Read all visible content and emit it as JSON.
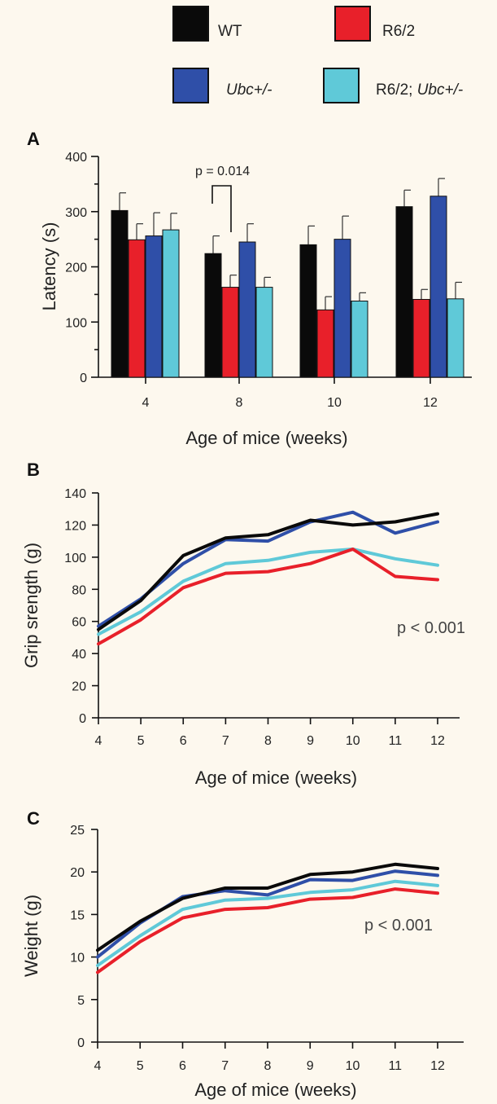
{
  "legend": [
    {
      "label": "WT",
      "italic_part": "",
      "color": "#0a0a0a"
    },
    {
      "label": "R6/2",
      "italic_part": "",
      "color": "#e8202a"
    },
    {
      "label": "",
      "italic_part": "Ubc+/-",
      "color": "#2f4fa8"
    },
    {
      "label": "R6/2; ",
      "italic_part": "Ubc+/-",
      "color": "#5fc9d8"
    }
  ],
  "chart_data": [
    {
      "panel": "A",
      "type": "bar",
      "categories": [
        "4",
        "8",
        "10",
        "12"
      ],
      "series": [
        {
          "name": "WT",
          "color": "#0a0a0a",
          "values": [
            302,
            224,
            240,
            309
          ],
          "errors": [
            32,
            32,
            34,
            30
          ]
        },
        {
          "name": "R6/2",
          "color": "#e8202a",
          "values": [
            249,
            163,
            122,
            141
          ],
          "errors": [
            29,
            22,
            24,
            18
          ]
        },
        {
          "name": "Ubc+/-",
          "color": "#2f4fa8",
          "values": [
            256,
            245,
            250,
            328
          ],
          "errors": [
            42,
            33,
            42,
            32
          ]
        },
        {
          "name": "R6/2; Ubc+/-",
          "color": "#5fc9d8",
          "values": [
            267,
            163,
            138,
            142
          ],
          "errors": [
            30,
            18,
            15,
            30
          ]
        }
      ],
      "xlabel": "Age of mice (weeks)",
      "ylabel": "Latency (s)",
      "ylim": [
        0,
        400
      ],
      "yticks": [
        0,
        100,
        200,
        300,
        400
      ],
      "annotation": "p = 0.014"
    },
    {
      "panel": "B",
      "type": "line",
      "x": [
        4,
        5,
        6,
        7,
        8,
        9,
        10,
        11,
        12
      ],
      "series": [
        {
          "name": "WT",
          "color": "#0a0a0a",
          "values": [
            55,
            73,
            101,
            112,
            114,
            123,
            120,
            122,
            127
          ]
        },
        {
          "name": "R6/2",
          "color": "#e8202a",
          "values": [
            46,
            61,
            81,
            90,
            91,
            96,
            105,
            88,
            86
          ]
        },
        {
          "name": "Ubc+/-",
          "color": "#2f4fa8",
          "values": [
            57,
            74,
            96,
            111,
            110,
            122,
            128,
            115,
            122
          ]
        },
        {
          "name": "R6/2; Ubc+/-",
          "color": "#5fc9d8",
          "values": [
            52,
            66,
            85,
            96,
            98,
            103,
            105,
            99,
            95
          ]
        }
      ],
      "xlabel": "Age of mice (weeks)",
      "ylabel": "Grip srength (g)",
      "xlim": [
        4,
        12
      ],
      "ylim": [
        0,
        140
      ],
      "xticks": [
        4,
        5,
        6,
        7,
        8,
        9,
        10,
        11,
        12
      ],
      "yticks": [
        0,
        20,
        40,
        60,
        80,
        100,
        120,
        140
      ],
      "annotation": "p < 0.001"
    },
    {
      "panel": "C",
      "type": "line",
      "x": [
        4,
        5,
        6,
        7,
        8,
        9,
        10,
        11,
        12
      ],
      "series": [
        {
          "name": "WT",
          "color": "#0a0a0a",
          "values": [
            10.8,
            14.2,
            16.9,
            18.1,
            18.1,
            19.7,
            20.0,
            20.9,
            20.4
          ]
        },
        {
          "name": "R6/2",
          "color": "#e8202a",
          "values": [
            8.2,
            11.8,
            14.6,
            15.6,
            15.8,
            16.8,
            17.0,
            18.0,
            17.5
          ]
        },
        {
          "name": "Ubc+/-",
          "color": "#2f4fa8",
          "values": [
            10.0,
            14.0,
            17.1,
            17.8,
            17.3,
            19.1,
            19.0,
            20.1,
            19.6
          ]
        },
        {
          "name": "R6/2; Ubc+/-",
          "color": "#5fc9d8",
          "values": [
            9.0,
            12.5,
            15.6,
            16.7,
            16.9,
            17.6,
            17.9,
            18.9,
            18.4
          ]
        }
      ],
      "xlabel": "Age of mice (weeks)",
      "ylabel": "Weight (g)",
      "xlim": [
        4,
        12
      ],
      "ylim": [
        0,
        25
      ],
      "xticks": [
        4,
        5,
        6,
        7,
        8,
        9,
        10,
        11,
        12
      ],
      "yticks": [
        0,
        5,
        10,
        15,
        20,
        25
      ],
      "annotation": "p < 0.001"
    }
  ]
}
